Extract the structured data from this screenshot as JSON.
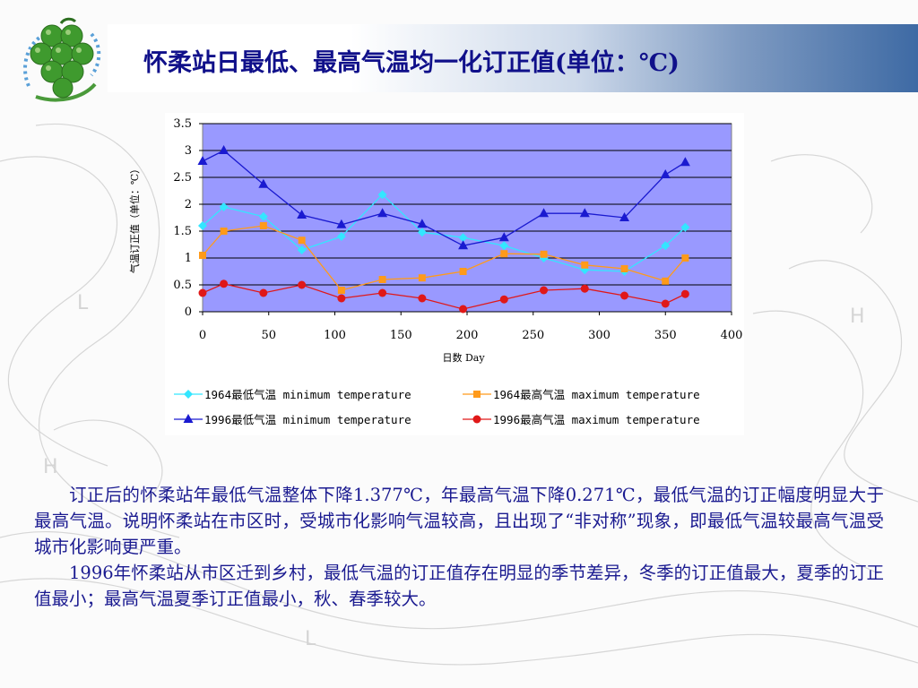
{
  "slide": {
    "title": "怀柔站日最低、最高气温均一化订正值(单位：℃)"
  },
  "chart_data": {
    "type": "line",
    "title": "",
    "xlabel": "日数  Day",
    "ylabel": "气温订正值（单位：℃）",
    "xlim": [
      0,
      400
    ],
    "ylim": [
      0,
      3.5
    ],
    "x_ticks": [
      "0",
      "50",
      "100",
      "150",
      "200",
      "250",
      "300",
      "350",
      "400"
    ],
    "y_ticks": [
      "0",
      "0.5",
      "1",
      "1.5",
      "2",
      "2.5",
      "3",
      "3.5"
    ],
    "grid": "horizontal",
    "legend_position": "bottom",
    "series": [
      {
        "name": "1964最低气温 minimum temperature",
        "color": "#33e6ff",
        "marker": "diamond",
        "x": [
          0,
          16,
          46,
          75,
          105,
          136,
          166,
          197,
          228,
          258,
          289,
          319,
          350,
          365
        ],
        "y": [
          1.6,
          1.95,
          1.77,
          1.15,
          1.4,
          2.18,
          1.48,
          1.38,
          1.23,
          1.0,
          0.78,
          0.75,
          1.23,
          1.57
        ]
      },
      {
        "name": "1964最高气温 maximum temperature",
        "color": "#ff9a1a",
        "marker": "square",
        "x": [
          0,
          16,
          46,
          75,
          105,
          136,
          166,
          197,
          228,
          258,
          289,
          319,
          350,
          365
        ],
        "y": [
          1.05,
          1.5,
          1.6,
          1.33,
          0.4,
          0.6,
          0.63,
          0.75,
          1.08,
          1.07,
          0.87,
          0.8,
          0.57,
          1.0
        ]
      },
      {
        "name": "1996最低气温 minimum temperature",
        "color": "#1a1ad0",
        "marker": "triangle",
        "x": [
          0,
          16,
          46,
          75,
          105,
          136,
          166,
          197,
          228,
          258,
          289,
          319,
          350,
          365
        ],
        "y": [
          2.8,
          3.0,
          2.37,
          1.8,
          1.62,
          1.83,
          1.63,
          1.23,
          1.38,
          1.83,
          1.83,
          1.75,
          2.55,
          2.78
        ]
      },
      {
        "name": "1996最高气温 maximum temperature",
        "color": "#e01818",
        "marker": "circle",
        "x": [
          0,
          16,
          46,
          75,
          105,
          136,
          166,
          197,
          228,
          258,
          289,
          319,
          350,
          365
        ],
        "y": [
          0.35,
          0.52,
          0.35,
          0.5,
          0.25,
          0.35,
          0.25,
          0.05,
          0.23,
          0.4,
          0.43,
          0.3,
          0.15,
          0.33
        ]
      }
    ]
  },
  "body": {
    "paragraphs": [
      "订正后的怀柔站年最低气温整体下降1.377℃，年最高气温下降0.271℃，最低气温的订正幅度明显大于最高气温。说明怀柔站在市区时，受城市化影响气温较高，且出现了“非对称”现象，即最低气温较最高气温受城市化影响更严重。",
      "1996年怀柔站从市区迁到乡村，最低气温的订正值存在明显的季节差异，冬季的订正值最大，夏季的订正值最小；最高气温夏季订正值最小，秋、春季较大。"
    ]
  },
  "colors": {
    "title_text": "#10108a",
    "body_text": "#1a1a90",
    "plot_background": "#9999ff"
  }
}
